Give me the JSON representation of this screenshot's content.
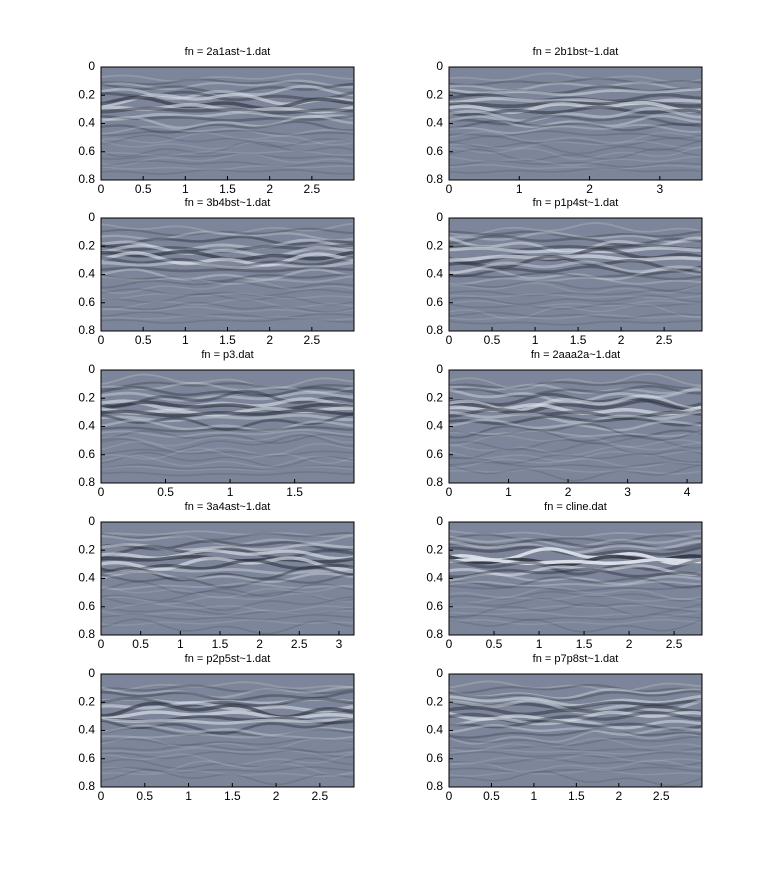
{
  "chart_data": [
    {
      "type": "radargram",
      "title": "fn = 2a1ast~1.dat",
      "xlim": [
        0,
        3.0
      ],
      "xticks": [
        0,
        0.5,
        1,
        1.5,
        2,
        2.5
      ],
      "ylim": [
        0,
        0.8
      ],
      "yticks": [
        0,
        0.2,
        0.4,
        0.6,
        0.8
      ],
      "y_reversed": true
    },
    {
      "type": "radargram",
      "title": "fn = 2b1bst~1.dat",
      "xlim": [
        0,
        3.6
      ],
      "xticks": [
        0,
        1,
        2,
        3
      ],
      "ylim": [
        0,
        0.8
      ],
      "yticks": [
        0,
        0.2,
        0.4,
        0.6,
        0.8
      ],
      "y_reversed": true
    },
    {
      "type": "radargram",
      "title": "fn = 3b4bst~1.dat",
      "xlim": [
        0,
        3.0
      ],
      "xticks": [
        0,
        0.5,
        1,
        1.5,
        2,
        2.5
      ],
      "ylim": [
        0,
        0.8
      ],
      "yticks": [
        0,
        0.2,
        0.4,
        0.6,
        0.8
      ],
      "y_reversed": true
    },
    {
      "type": "radargram",
      "title": "fn = p1p4st~1.dat",
      "xlim": [
        0,
        2.94
      ],
      "xticks": [
        0,
        0.5,
        1,
        1.5,
        2,
        2.5
      ],
      "ylim": [
        0,
        0.8
      ],
      "yticks": [
        0,
        0.2,
        0.4,
        0.6,
        0.8
      ],
      "y_reversed": true
    },
    {
      "type": "radargram",
      "title": "fn = p3.dat",
      "xlim": [
        0,
        1.96
      ],
      "xticks": [
        0,
        0.5,
        1,
        1.5
      ],
      "ylim": [
        0,
        0.8
      ],
      "yticks": [
        0,
        0.2,
        0.4,
        0.6,
        0.8
      ],
      "y_reversed": true
    },
    {
      "type": "radargram",
      "title": "fn = 2aaa2a~1.dat",
      "xlim": [
        0,
        4.25
      ],
      "xticks": [
        0,
        1,
        2,
        3,
        4
      ],
      "ylim": [
        0,
        0.8
      ],
      "yticks": [
        0,
        0.2,
        0.4,
        0.6,
        0.8
      ],
      "y_reversed": true
    },
    {
      "type": "radargram",
      "title": "fn = 3a4ast~1.dat",
      "xlim": [
        0,
        3.19
      ],
      "xticks": [
        0,
        0.5,
        1,
        1.5,
        2,
        2.5,
        3
      ],
      "ylim": [
        0,
        0.8
      ],
      "yticks": [
        0,
        0.2,
        0.4,
        0.6,
        0.8
      ],
      "y_reversed": true
    },
    {
      "type": "radargram",
      "title": "fn = cline.dat",
      "xlim": [
        0,
        2.81
      ],
      "xticks": [
        0,
        0.5,
        1,
        1.5,
        2,
        2.5
      ],
      "ylim": [
        0,
        0.8
      ],
      "yticks": [
        0,
        0.2,
        0.4,
        0.6,
        0.8
      ],
      "y_reversed": true
    },
    {
      "type": "radargram",
      "title": "fn = p2p5st~1.dat",
      "xlim": [
        0,
        2.89
      ],
      "xticks": [
        0,
        0.5,
        1,
        1.5,
        2,
        2.5
      ],
      "ylim": [
        0,
        0.8
      ],
      "yticks": [
        0,
        0.2,
        0.4,
        0.6,
        0.8
      ],
      "y_reversed": true
    },
    {
      "type": "radargram",
      "title": "fn = p7p8st~1.dat",
      "xlim": [
        0,
        2.98
      ],
      "xticks": [
        0,
        0.5,
        1,
        1.5,
        2,
        2.5
      ],
      "ylim": [
        0,
        0.8
      ],
      "yticks": [
        0,
        0.2,
        0.4,
        0.6,
        0.8
      ],
      "y_reversed": true
    }
  ]
}
